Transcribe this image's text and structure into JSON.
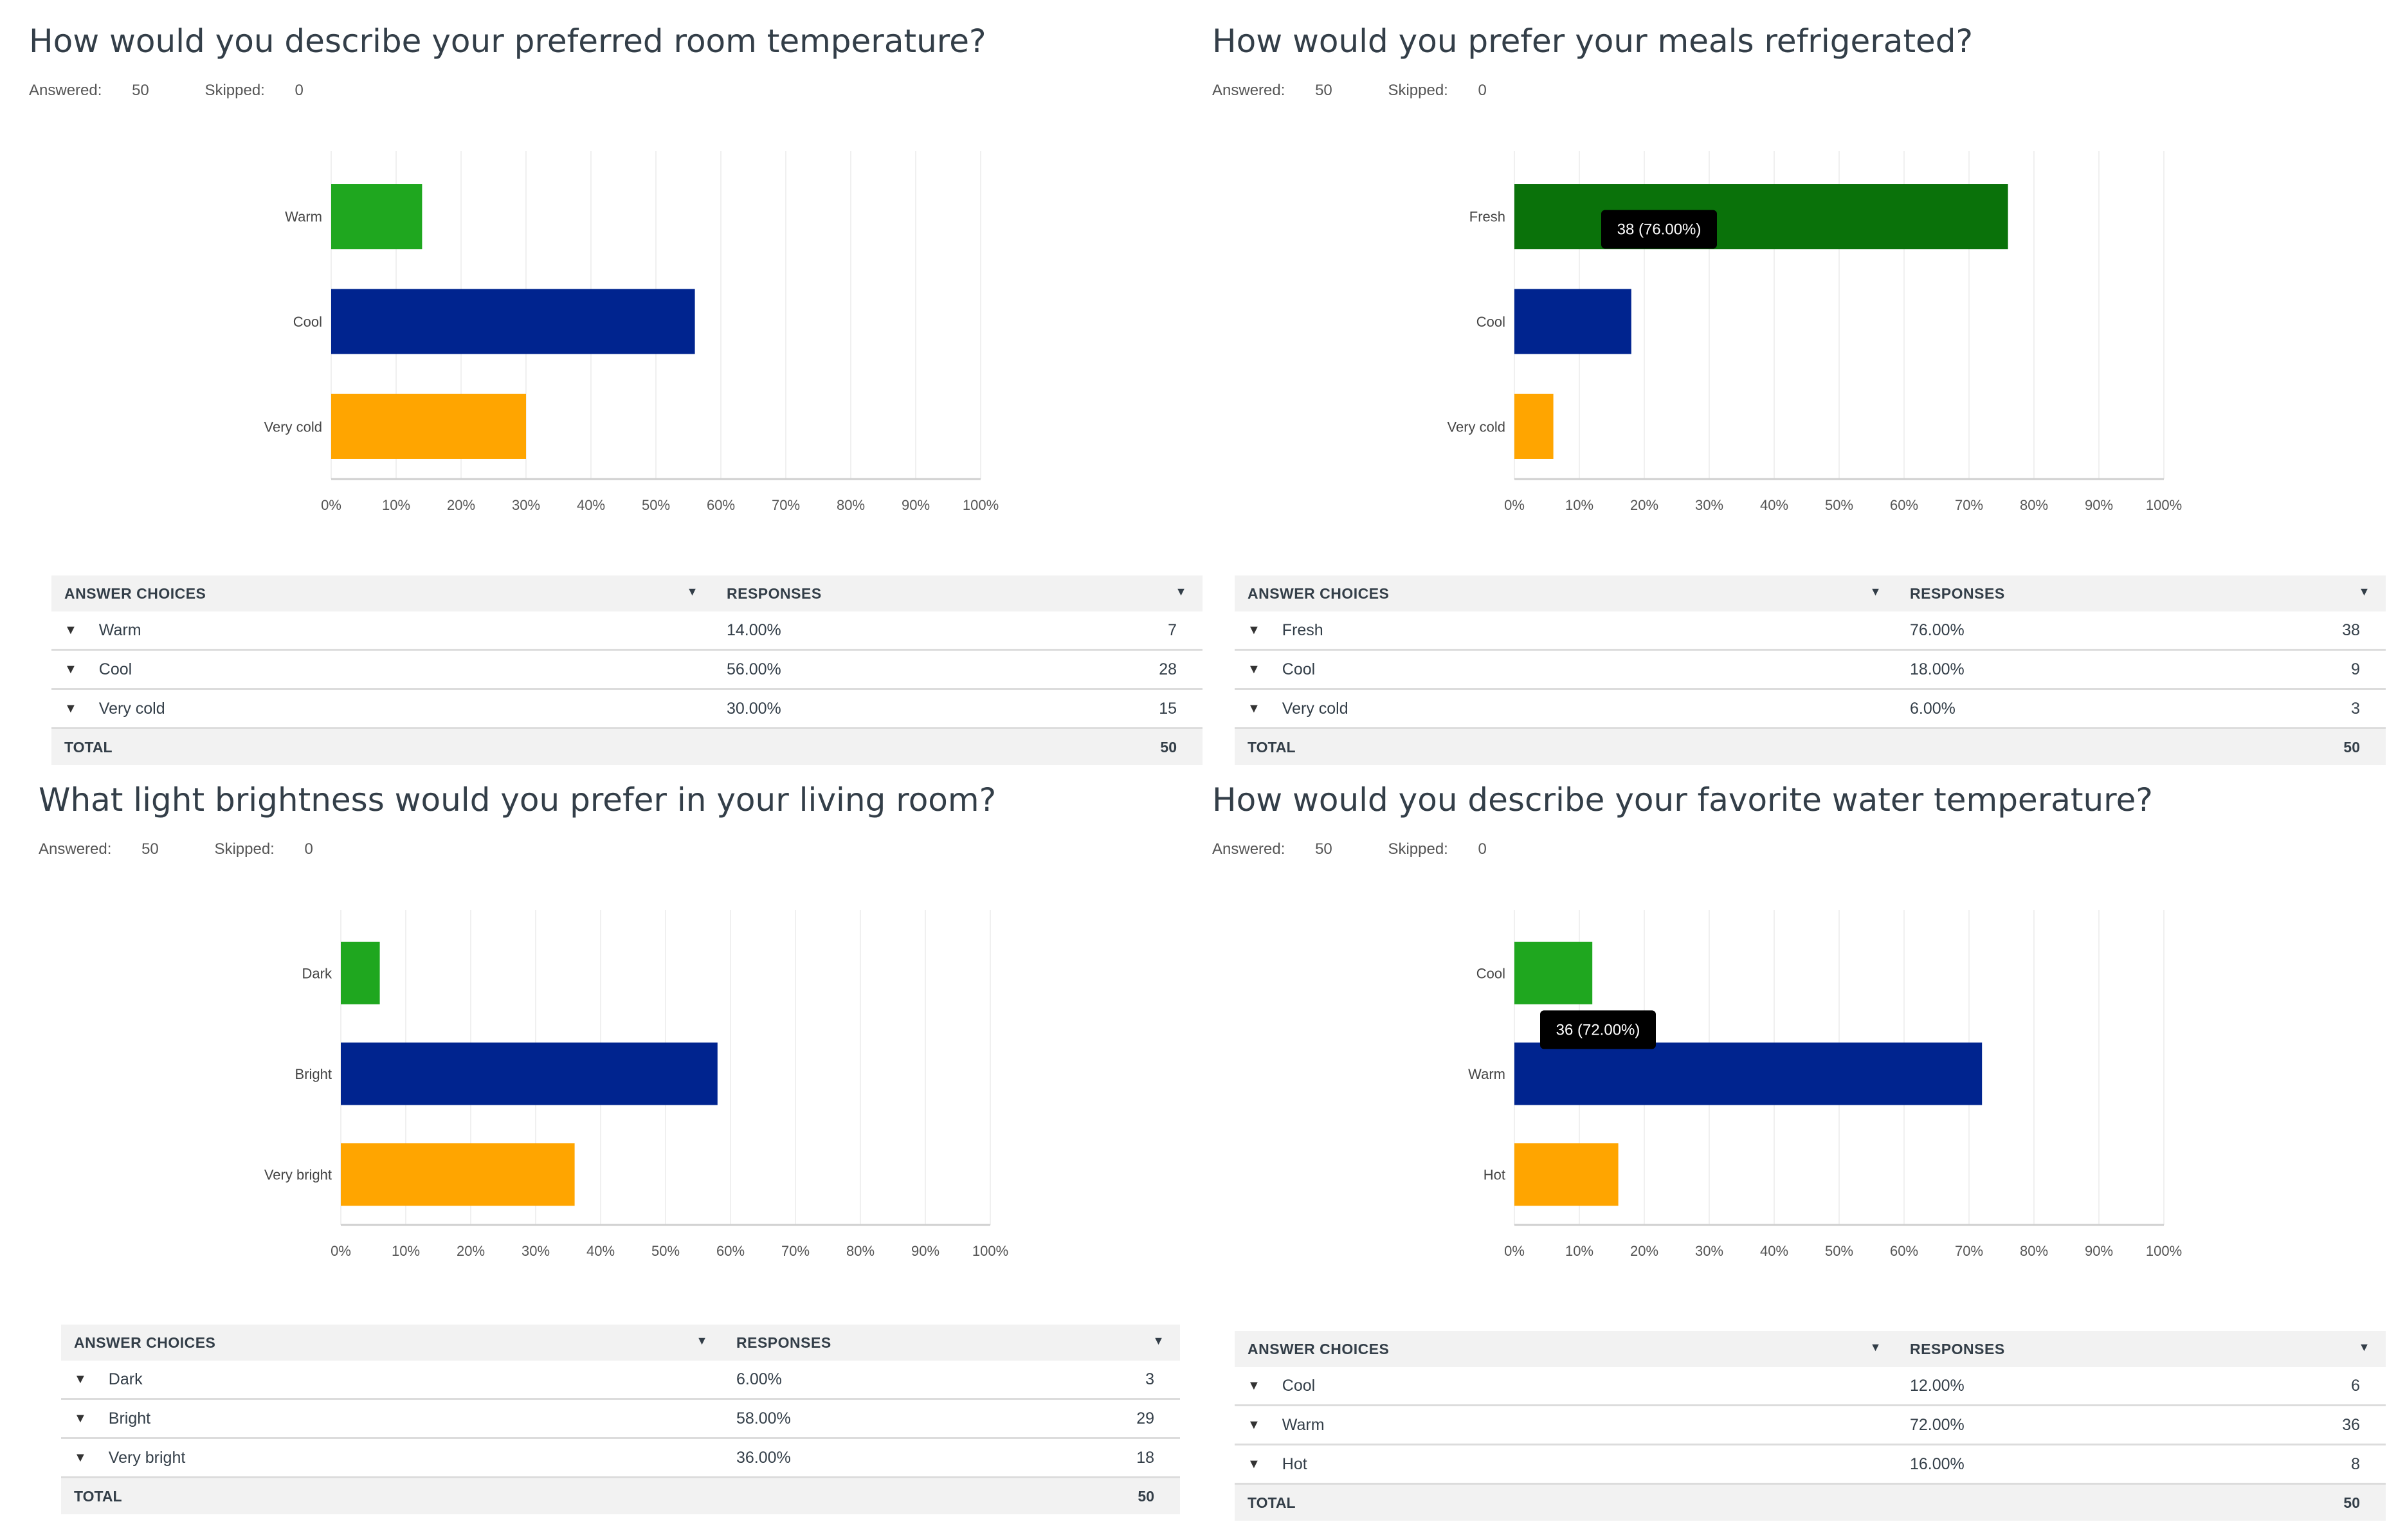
{
  "labels": {
    "answered_prefix": "Answered: ",
    "skipped_prefix": "Skipped: ",
    "col_answer": "ANSWER CHOICES",
    "col_responses": "RESPONSES",
    "total": "TOTAL"
  },
  "colors": {
    "green": "#1fa71f",
    "dark_green": "#0a720a",
    "blue": "#00248f",
    "orange": "#ffa500",
    "tooltip": "#000000"
  },
  "panels": [
    {
      "title": "How would you describe your preferred room temperature?",
      "answered": "50",
      "skipped": "0",
      "rows": [
        {
          "label": "Warm",
          "percent": "14.00%",
          "count": "7"
        },
        {
          "label": "Cool",
          "percent": "56.00%",
          "count": "28"
        },
        {
          "label": "Very cold",
          "percent": "30.00%",
          "count": "15"
        }
      ],
      "total": "50"
    },
    {
      "title": "How would you prefer your meals refrigerated?",
      "answered": "50",
      "skipped": "0",
      "rows": [
        {
          "label": "Fresh",
          "percent": "76.00%",
          "count": "38"
        },
        {
          "label": "Cool",
          "percent": "18.00%",
          "count": "9"
        },
        {
          "label": "Very cold",
          "percent": "6.00%",
          "count": "3"
        }
      ],
      "total": "50"
    },
    {
      "title": "What light brightness would you prefer in your living room?",
      "answered": "50",
      "skipped": "0",
      "rows": [
        {
          "label": "Dark",
          "percent": "6.00%",
          "count": "3"
        },
        {
          "label": "Bright",
          "percent": "58.00%",
          "count": "29"
        },
        {
          "label": "Very bright",
          "percent": "36.00%",
          "count": "18"
        }
      ],
      "total": "50"
    },
    {
      "title": "How would you describe your favorite water temperature?",
      "answered": "50",
      "skipped": "0",
      "rows": [
        {
          "label": "Cool",
          "percent": "12.00%",
          "count": "6"
        },
        {
          "label": "Warm",
          "percent": "72.00%",
          "count": "36"
        },
        {
          "label": "Hot",
          "percent": "16.00%",
          "count": "8"
        }
      ],
      "total": "50"
    }
  ],
  "chart_data": [
    {
      "type": "bar",
      "orientation": "horizontal",
      "title": "How would you describe your preferred room temperature?",
      "categories": [
        "Warm",
        "Cool",
        "Very cold"
      ],
      "values": [
        14,
        56,
        30
      ],
      "xlim": [
        0,
        100
      ],
      "xticks": [
        "0%",
        "10%",
        "20%",
        "30%",
        "40%",
        "50%",
        "60%",
        "70%",
        "80%",
        "90%",
        "100%"
      ],
      "bar_colors": [
        "#1fa71f",
        "#00248f",
        "#ffa500"
      ],
      "tooltip": null
    },
    {
      "type": "bar",
      "orientation": "horizontal",
      "title": "How would you prefer your meals refrigerated?",
      "categories": [
        "Fresh",
        "Cool",
        "Very cold"
      ],
      "values": [
        76,
        18,
        6
      ],
      "xlim": [
        0,
        100
      ],
      "xticks": [
        "0%",
        "10%",
        "20%",
        "30%",
        "40%",
        "50%",
        "60%",
        "70%",
        "80%",
        "90%",
        "100%"
      ],
      "bar_colors": [
        "#0a720a",
        "#00248f",
        "#ffa500"
      ],
      "tooltip": {
        "bar": 0,
        "text": "38 (76.00%)"
      }
    },
    {
      "type": "bar",
      "orientation": "horizontal",
      "title": "What light brightness would you prefer in your living room?",
      "categories": [
        "Dark",
        "Bright",
        "Very bright"
      ],
      "values": [
        6,
        58,
        36
      ],
      "xlim": [
        0,
        100
      ],
      "xticks": [
        "0%",
        "10%",
        "20%",
        "30%",
        "40%",
        "50%",
        "60%",
        "70%",
        "80%",
        "90%",
        "100%"
      ],
      "bar_colors": [
        "#1fa71f",
        "#00248f",
        "#ffa500"
      ],
      "tooltip": null
    },
    {
      "type": "bar",
      "orientation": "horizontal",
      "title": "How would you describe your favorite water temperature?",
      "categories": [
        "Cool",
        "Warm",
        "Hot"
      ],
      "values": [
        12,
        72,
        16
      ],
      "xlim": [
        0,
        100
      ],
      "xticks": [
        "0%",
        "10%",
        "20%",
        "30%",
        "40%",
        "50%",
        "60%",
        "70%",
        "80%",
        "90%",
        "100%"
      ],
      "bar_colors": [
        "#1fa71f",
        "#00248f",
        "#ffa500"
      ],
      "tooltip": {
        "bar": 1,
        "text": "36 (72.00%)"
      }
    }
  ]
}
